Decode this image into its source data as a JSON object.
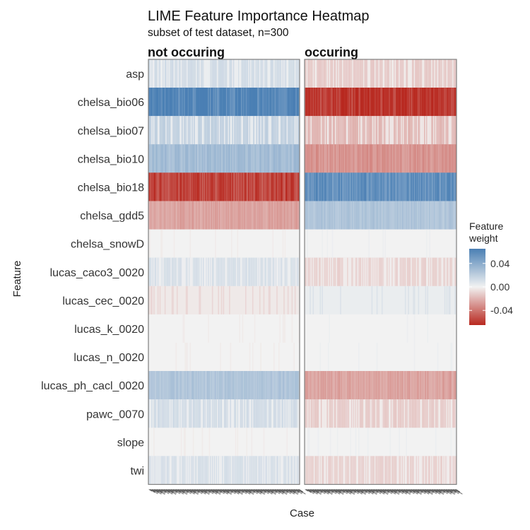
{
  "chart_data": {
    "type": "heatmap",
    "title": "LIME Feature Importance Heatmap",
    "subtitle": "subset of test dataset, n=300",
    "xlabel": "Case",
    "ylabel": "Feature",
    "facets": [
      "not occuring",
      "occuring"
    ],
    "features": [
      "asp",
      "chelsa_bio06",
      "chelsa_bio07",
      "chelsa_bio10",
      "chelsa_bio18",
      "chelsa_gdd5",
      "chelsa_snowD",
      "lucas_caco3_0020",
      "lucas_cec_0020",
      "lucas_k_0020",
      "lucas_n_0020",
      "lucas_ph_cacl_0020",
      "pawc_0070",
      "slope",
      "twi"
    ],
    "approx_feature_weight": {
      "not occuring": [
        0.012,
        0.06,
        0.018,
        0.03,
        -0.055,
        -0.025,
        0.0,
        0.01,
        -0.003,
        0.0,
        0.0,
        0.025,
        0.012,
        0.0,
        0.01
      ],
      "occuring": [
        -0.012,
        -0.06,
        -0.018,
        -0.03,
        0.055,
        0.025,
        0.0,
        -0.01,
        0.003,
        0.0,
        0.0,
        -0.025,
        -0.012,
        0.0,
        -0.01
      ]
    },
    "legend": {
      "title": "Feature weight",
      "ticks": [
        0.04,
        0.0,
        -0.04
      ],
      "tick_labels": [
        "0.04",
        "0.00",
        "-0.04"
      ],
      "placement": "right",
      "colors": {
        "high": "#4a7fb4",
        "mid": "#f2f2f2",
        "low": "#b8281f"
      },
      "range": [
        -0.065,
        0.065
      ]
    },
    "grid": false
  }
}
